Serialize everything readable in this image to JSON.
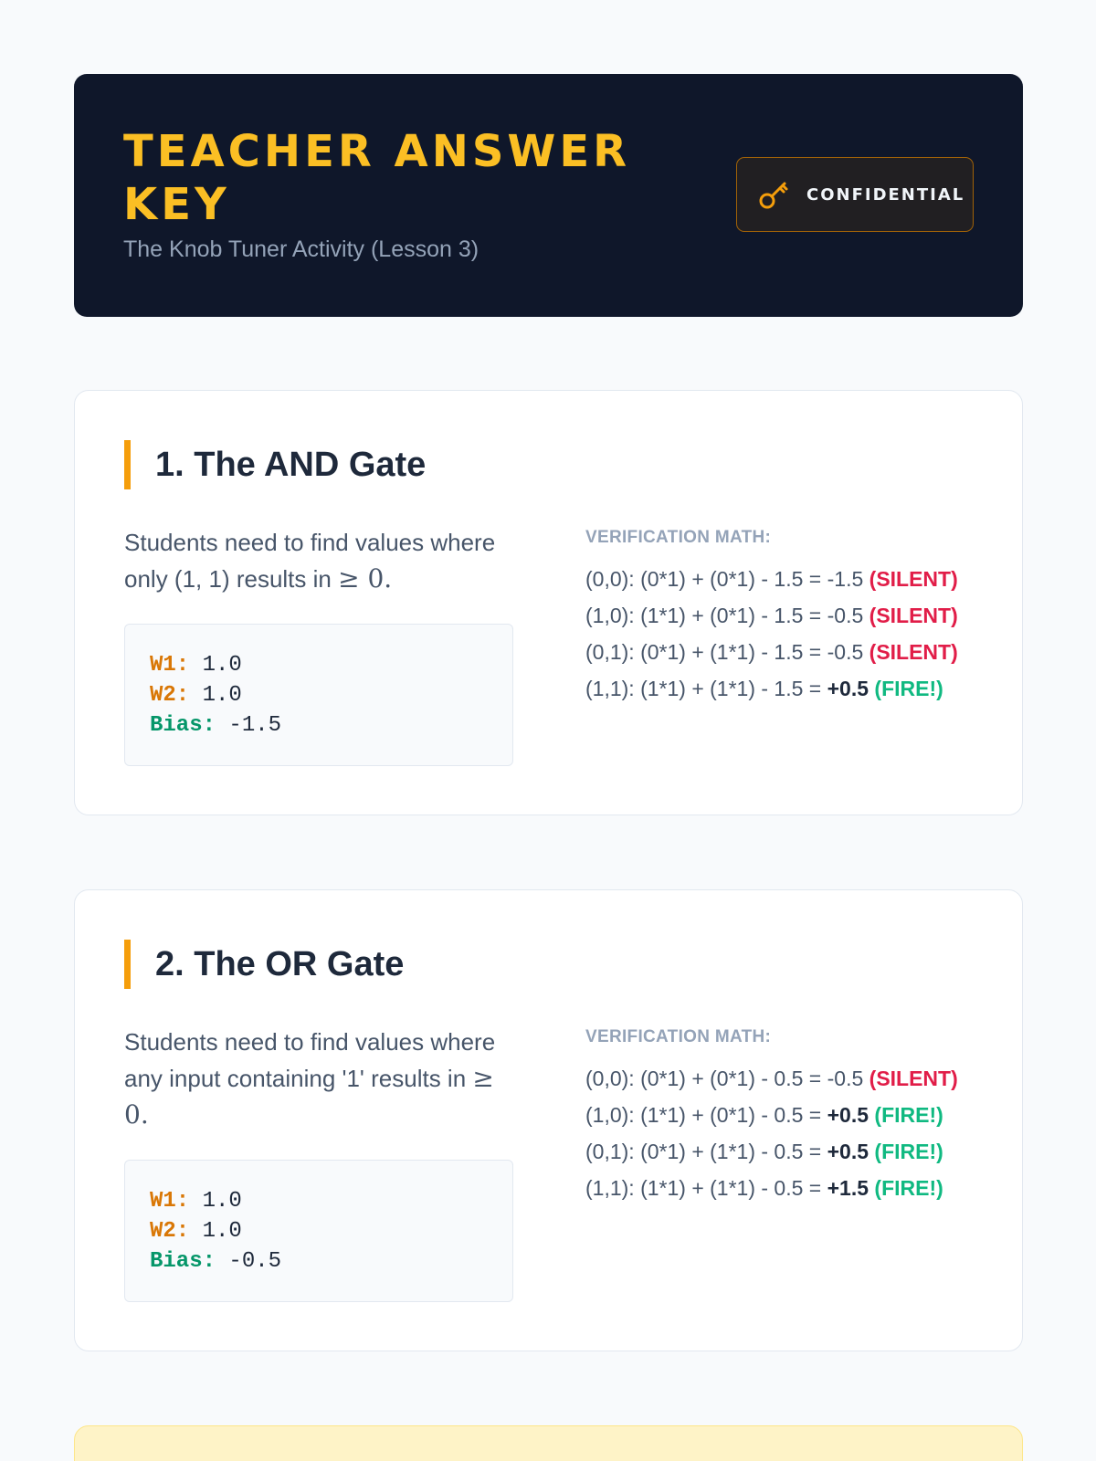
{
  "header": {
    "title": "TEACHER ANSWER KEY",
    "subtitle": "The Knob Tuner Activity (Lesson 3)",
    "badge_label": "CONFIDENTIAL",
    "badge_icon": "key-icon"
  },
  "colors": {
    "banner_bg": "#0f172a",
    "title_accent": "#fbbf24",
    "card_accent": "#f59e0b",
    "silent": "#e11d48",
    "fire": "#10b981",
    "note_bg": "#fef3c7"
  },
  "gates": [
    {
      "title": "1. The AND Gate",
      "description_prefix": "Students need to find values where only (1, 1) results in",
      "description_symbol": "≥ 0.",
      "params": {
        "w1_label": "W1:",
        "w1": "1.0",
        "w2_label": "W2:",
        "w2": "1.0",
        "bias_label": "Bias:",
        "bias": "-1.5"
      },
      "verification_label": "VERIFICATION MATH:",
      "rows": [
        {
          "expr": "(0,0): (0*1) + (0*1) - 1.5 = ",
          "result": "-1.5",
          "status": "(SILENT)"
        },
        {
          "expr": "(1,0): (1*1) + (0*1) - 1.5 = ",
          "result": "-0.5",
          "status": "(SILENT)"
        },
        {
          "expr": "(0,1): (0*1) + (1*1) - 1.5 = ",
          "result": "-0.5",
          "status": "(SILENT)"
        },
        {
          "expr": "(1,1): (1*1) + (1*1) - 1.5 = ",
          "result": "+0.5",
          "status": "(FIRE!)"
        }
      ]
    },
    {
      "title": "2. The OR Gate",
      "description_prefix": "Students need to find values where any input containing '1' results in",
      "description_symbol": "≥ 0.",
      "params": {
        "w1_label": "W1:",
        "w1": "1.0",
        "w2_label": "W2:",
        "w2": "1.0",
        "bias_label": "Bias:",
        "bias": "-0.5"
      },
      "verification_label": "VERIFICATION MATH:",
      "rows": [
        {
          "expr": "(0,0): (0*1) + (0*1) - 0.5 = ",
          "result": "-0.5",
          "status": "(SILENT)"
        },
        {
          "expr": "(1,0): (1*1) + (0*1) - 0.5 = ",
          "result": "+0.5",
          "status": "(FIRE!)"
        },
        {
          "expr": "(0,1): (0*1) + (1*1) - 0.5 = ",
          "result": "+0.5",
          "status": "(FIRE!)"
        },
        {
          "expr": "(1,1): (1*1) + (1*1) - 0.5 = ",
          "result": "+1.5",
          "status": "(FIRE!)"
        }
      ]
    }
  ]
}
